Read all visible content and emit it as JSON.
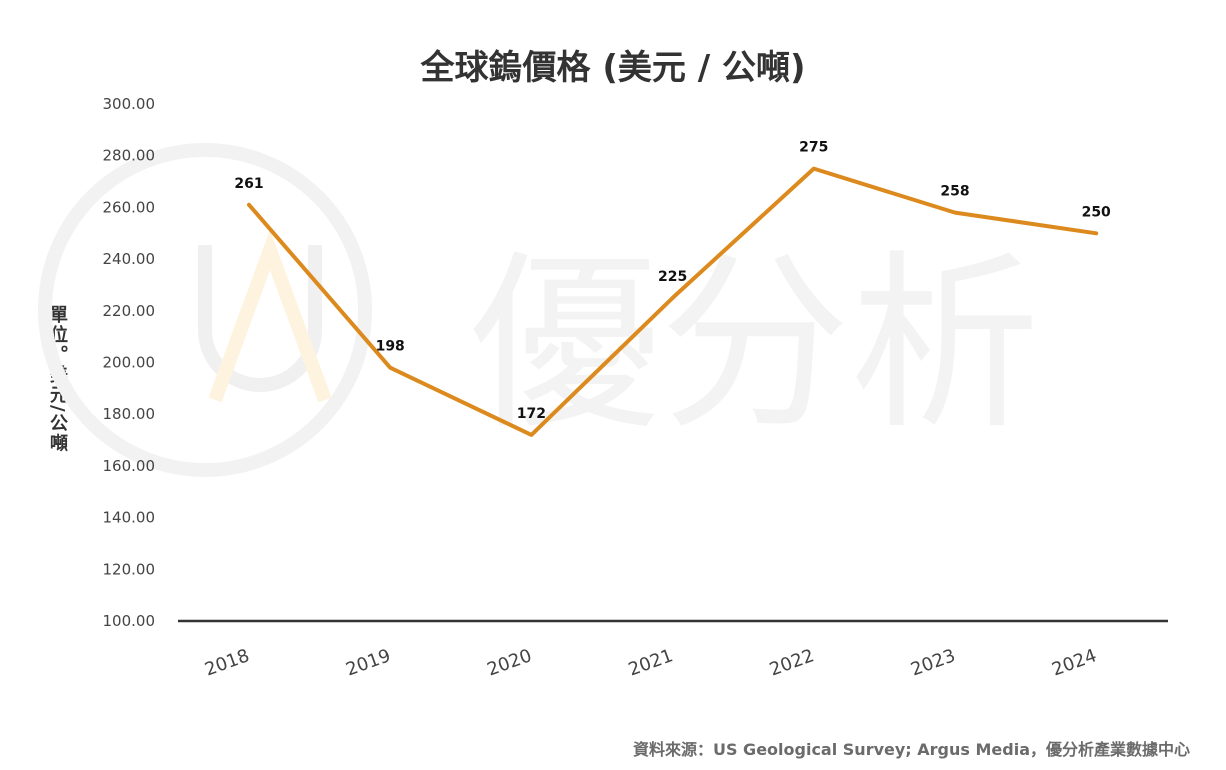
{
  "title": "全球鎢價格 (美元 / 公噸)",
  "source": "資料來源：US Geological Survey; Argus Media，優分析產業數據中心",
  "watermark": {
    "text": "優分析"
  },
  "colors": {
    "line": "#dc8a1d",
    "axis": "#333333",
    "watermark_ring": "#f2f2f2",
    "watermark_accent": "#fdf3df"
  },
  "chart_data": {
    "type": "line",
    "title": "全球鎢價格 (美元 / 公噸)",
    "ylabel": "單位。美元/公噸",
    "xlabel": "",
    "categories": [
      "2018",
      "2019",
      "2020",
      "2021",
      "2022",
      "2023",
      "2024"
    ],
    "values": [
      261,
      198,
      172,
      225,
      275,
      258,
      250
    ],
    "data_labels": [
      "261",
      "198",
      "172",
      "225",
      "275",
      "258",
      "250"
    ],
    "ylim": [
      100,
      300
    ],
    "yticks": [
      "100.00",
      "120.00",
      "140.00",
      "160.00",
      "180.00",
      "200.00",
      "220.00",
      "240.00",
      "260.00",
      "280.00",
      "300.00"
    ],
    "grid": false,
    "legend": "none"
  }
}
